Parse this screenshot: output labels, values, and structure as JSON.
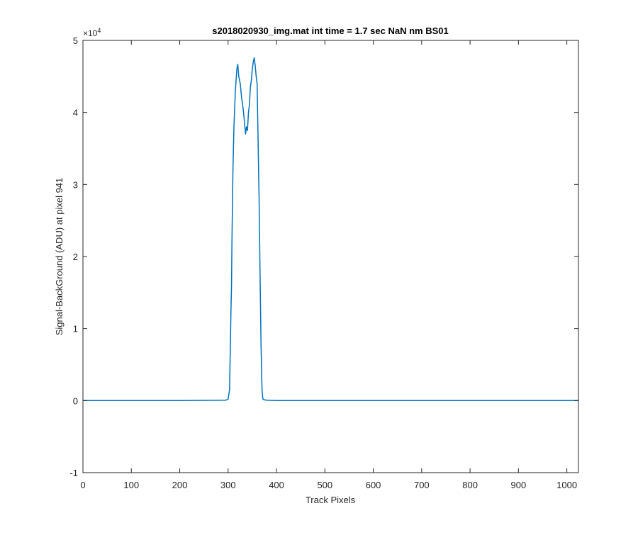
{
  "chart_data": {
    "type": "line",
    "title": "s2018020930_img.mat int time = 1.7 sec  NaN nm BS01",
    "xlabel": "Track Pixels",
    "ylabel": "Signal-BackGround (ADU) at pixel 941",
    "xlim": [
      0,
      1024
    ],
    "ylim": [
      -10000,
      50000
    ],
    "y_exponent_label": "×10",
    "y_exponent_power": "4",
    "x_ticks": [
      {
        "value": 0,
        "label": "0"
      },
      {
        "value": 100,
        "label": "100"
      },
      {
        "value": 200,
        "label": "200"
      },
      {
        "value": 300,
        "label": "300"
      },
      {
        "value": 400,
        "label": "400"
      },
      {
        "value": 500,
        "label": "500"
      },
      {
        "value": 600,
        "label": "600"
      },
      {
        "value": 700,
        "label": "700"
      },
      {
        "value": 800,
        "label": "800"
      },
      {
        "value": 900,
        "label": "900"
      },
      {
        "value": 1000,
        "label": "1000"
      }
    ],
    "y_ticks": [
      {
        "value": -10000,
        "label": "-1"
      },
      {
        "value": 0,
        "label": "0"
      },
      {
        "value": 10000,
        "label": "1"
      },
      {
        "value": 20000,
        "label": "2"
      },
      {
        "value": 30000,
        "label": "3"
      },
      {
        "value": 40000,
        "label": "4"
      },
      {
        "value": 50000,
        "label": "5"
      }
    ],
    "grid": false,
    "series": [
      {
        "color": "#0072BD",
        "x": [
          0,
          100,
          200,
          295,
          300,
          303,
          305,
          306,
          307,
          308,
          310,
          312,
          315,
          318,
          320,
          322,
          325,
          328,
          330,
          332,
          334,
          336,
          338,
          340,
          342,
          344,
          346,
          348,
          350,
          352,
          354,
          356,
          358,
          360,
          362,
          364,
          366,
          368,
          370,
          372,
          375,
          380,
          400,
          500,
          600,
          700,
          800,
          900,
          1000,
          1024
        ],
        "y": [
          0,
          0,
          0,
          50,
          200,
          1500,
          9000,
          13000,
          16000,
          22000,
          32000,
          38000,
          43000,
          46000,
          46700,
          45000,
          44000,
          42000,
          41000,
          40000,
          38500,
          37000,
          38000,
          37500,
          40000,
          41000,
          43500,
          44500,
          46000,
          47000,
          47600,
          46500,
          45000,
          44000,
          36000,
          28000,
          18000,
          8000,
          1500,
          200,
          100,
          50,
          0,
          0,
          0,
          0,
          0,
          0,
          0,
          0
        ]
      }
    ]
  }
}
